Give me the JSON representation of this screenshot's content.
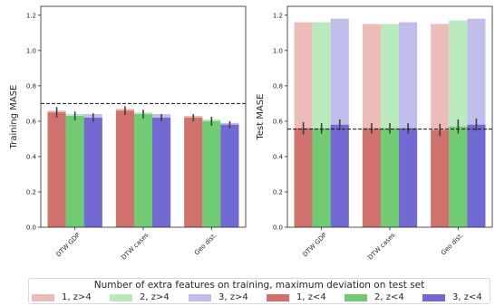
{
  "chart_data": [
    {
      "type": "bar",
      "ylabel": "Training MASE",
      "xlabel": "",
      "ylim": [
        0,
        1.25
      ],
      "yticks": [
        "0.0",
        "0.2",
        "0.4",
        "0.6",
        "0.8",
        "1.0",
        "1.2"
      ],
      "categories": [
        "DTW GDP",
        "DTW cases",
        "Geo dist."
      ],
      "reference_line": 0.7,
      "series": [
        {
          "name": "1, z>4",
          "values": [
            0.66,
            0.67,
            0.63
          ],
          "color": "#ecbcb9"
        },
        {
          "name": "2, z>4",
          "values": [
            0.64,
            0.65,
            0.61
          ],
          "color": "#b9e9bd"
        },
        {
          "name": "3, z>4",
          "values": [
            0.64,
            0.64,
            0.59
          ],
          "color": "#bfbdec"
        },
        {
          "name": "1, z<4",
          "values": [
            0.65,
            0.66,
            0.62
          ],
          "color": "#d0716d",
          "err": [
            0.03,
            0.025,
            0.02
          ]
        },
        {
          "name": "2, z<4",
          "values": [
            0.63,
            0.64,
            0.6
          ],
          "color": "#71cb72",
          "err": [
            0.025,
            0.025,
            0.025
          ]
        },
        {
          "name": "3, z<4",
          "values": [
            0.62,
            0.62,
            0.58
          ],
          "color": "#7369d3",
          "err": [
            0.025,
            0.02,
            0.02
          ]
        }
      ]
    },
    {
      "type": "bar",
      "ylabel": "Test MASE",
      "xlabel": "",
      "ylim": [
        0,
        1.25
      ],
      "yticks": [
        "0.0",
        "0.2",
        "0.4",
        "0.6",
        "0.8",
        "1.0",
        "1.2"
      ],
      "categories": [
        "DTW GDP",
        "DTW cases",
        "Geo dist."
      ],
      "reference_line": 0.555,
      "series": [
        {
          "name": "1, z>4",
          "values": [
            1.16,
            1.15,
            1.15
          ],
          "color": "#ecbcb9"
        },
        {
          "name": "2, z>4",
          "values": [
            1.16,
            1.15,
            1.17
          ],
          "color": "#b9e9bd"
        },
        {
          "name": "3, z>4",
          "values": [
            1.18,
            1.16,
            1.18
          ],
          "color": "#bfbdec"
        },
        {
          "name": "1, z<4",
          "values": [
            0.56,
            0.56,
            0.55
          ],
          "color": "#d0716d",
          "err": [
            0.035,
            0.03,
            0.035
          ]
        },
        {
          "name": "2, z<4",
          "values": [
            0.56,
            0.56,
            0.57
          ],
          "color": "#71cb72",
          "err": [
            0.03,
            0.03,
            0.04
          ]
        },
        {
          "name": "3, z<4",
          "values": [
            0.58,
            0.56,
            0.58
          ],
          "color": "#7369d3",
          "err": [
            0.03,
            0.03,
            0.035
          ]
        }
      ]
    }
  ],
  "legend": {
    "title": "Number of extra features on training, maximum deviation on test set",
    "entries": [
      {
        "label": "1, z>4",
        "color": "#ecbcb9"
      },
      {
        "label": "2, z>4",
        "color": "#b9e9bd"
      },
      {
        "label": "3, z>4",
        "color": "#bfbdec"
      },
      {
        "label": "1, z<4",
        "color": "#d0716d"
      },
      {
        "label": "2, z<4",
        "color": "#71cb72"
      },
      {
        "label": "3, z<4",
        "color": "#7369d3"
      }
    ]
  }
}
